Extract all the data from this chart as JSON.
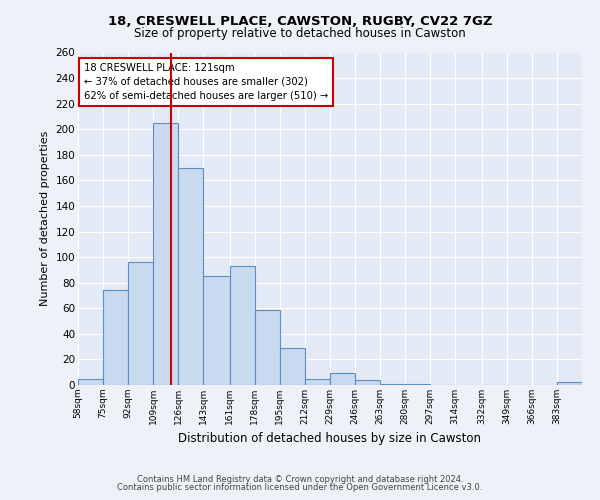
{
  "title1": "18, CRESWELL PLACE, CAWSTON, RUGBY, CV22 7GZ",
  "title2": "Size of property relative to detached houses in Cawston",
  "xlabel": "Distribution of detached houses by size in Cawston",
  "ylabel": "Number of detached properties",
  "bar_edges": [
    58,
    75,
    92,
    109,
    126,
    143,
    161,
    178,
    195,
    212,
    229,
    246,
    263,
    280,
    297,
    314,
    332,
    349,
    366,
    383,
    400
  ],
  "bar_heights": [
    5,
    74,
    96,
    205,
    170,
    85,
    93,
    59,
    29,
    5,
    9,
    4,
    1,
    1,
    0,
    0,
    0,
    0,
    0,
    2
  ],
  "bar_color": "#c9d9f0",
  "bar_edge_color": "#5b8ec4",
  "property_size": 121,
  "vline_color": "#cc0000",
  "annotation_text": "18 CRESWELL PLACE: 121sqm\n← 37% of detached houses are smaller (302)\n62% of semi-detached houses are larger (510) →",
  "annotation_box_color": "white",
  "annotation_box_edge": "#cc0000",
  "ylim": [
    0,
    260
  ],
  "yticks": [
    0,
    20,
    40,
    60,
    80,
    100,
    120,
    140,
    160,
    180,
    200,
    220,
    240,
    260
  ],
  "footnote1": "Contains HM Land Registry data © Crown copyright and database right 2024.",
  "footnote2": "Contains public sector information licensed under the Open Government Licence v3.0.",
  "bg_color": "#eef2f8",
  "plot_bg_color": "#e4eaf5"
}
